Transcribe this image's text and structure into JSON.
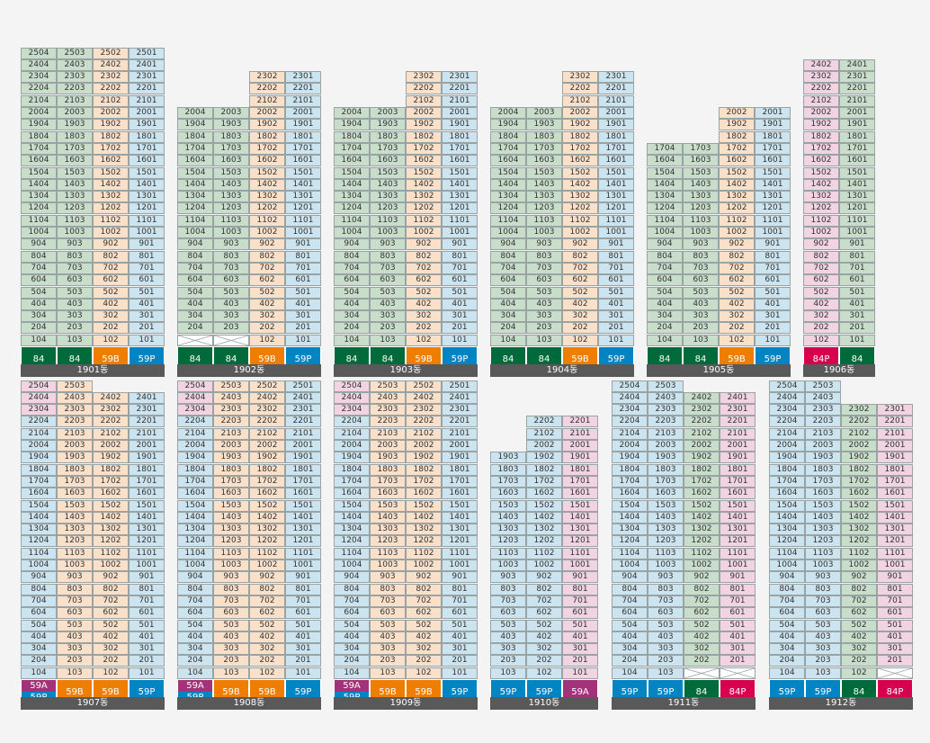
{
  "colors": {
    "green": "#c9ddcb",
    "blue": "#cce4ef",
    "peach": "#fae0c9",
    "pink": "#f1d3e2",
    "t84": "#006b3a",
    "t59B": "#ef7d00",
    "t59P": "#0085c4",
    "t84P": "#d6004f",
    "t59A": "#a2337a"
  },
  "buildings": [
    {
      "name": "1901동",
      "topFloor": 25,
      "columns": [
        {
          "unit": 4,
          "minFloor": 1,
          "color": "green",
          "type": [
            {
              "t": "84"
            }
          ]
        },
        {
          "unit": 3,
          "minFloor": 1,
          "color": "green",
          "type": [
            {
              "t": "84"
            }
          ]
        },
        {
          "unit": 2,
          "minFloor": 1,
          "color": "peach",
          "type": [
            {
              "t": "59B"
            }
          ]
        },
        {
          "unit": 1,
          "minFloor": 1,
          "color": "blue",
          "type": [
            {
              "t": "59P"
            }
          ]
        }
      ]
    },
    {
      "name": "1902동",
      "topFloor": 23,
      "columns": [
        {
          "unit": 4,
          "minFloor": 1,
          "maxFloor": 20,
          "color": "green",
          "xFloors": [
            1
          ],
          "type": [
            {
              "t": "84"
            }
          ]
        },
        {
          "unit": 3,
          "minFloor": 1,
          "maxFloor": 20,
          "color": "green",
          "xFloors": [
            1
          ],
          "type": [
            {
              "t": "84"
            }
          ]
        },
        {
          "unit": 2,
          "minFloor": 1,
          "color": "peach",
          "type": [
            {
              "t": "59B"
            }
          ]
        },
        {
          "unit": 1,
          "minFloor": 1,
          "color": "blue",
          "type": [
            {
              "t": "59P"
            }
          ]
        }
      ]
    },
    {
      "name": "1903동",
      "topFloor": 23,
      "columns": [
        {
          "unit": 4,
          "minFloor": 1,
          "maxFloor": 20,
          "color": "green",
          "type": [
            {
              "t": "84"
            }
          ]
        },
        {
          "unit": 3,
          "minFloor": 1,
          "maxFloor": 20,
          "color": "green",
          "type": [
            {
              "t": "84"
            }
          ]
        },
        {
          "unit": 2,
          "minFloor": 1,
          "color": "peach",
          "type": [
            {
              "t": "59B"
            }
          ]
        },
        {
          "unit": 1,
          "minFloor": 1,
          "color": "blue",
          "type": [
            {
              "t": "59P"
            }
          ]
        }
      ]
    },
    {
      "name": "1904동",
      "topFloor": 23,
      "columns": [
        {
          "unit": 4,
          "minFloor": 1,
          "maxFloor": 20,
          "color": "green",
          "type": [
            {
              "t": "84"
            }
          ]
        },
        {
          "unit": 3,
          "minFloor": 1,
          "maxFloor": 20,
          "color": "green",
          "type": [
            {
              "t": "84"
            }
          ]
        },
        {
          "unit": 2,
          "minFloor": 1,
          "color": "peach",
          "type": [
            {
              "t": "59B"
            }
          ]
        },
        {
          "unit": 1,
          "minFloor": 1,
          "color": "blue",
          "type": [
            {
              "t": "59P"
            }
          ]
        }
      ]
    },
    {
      "name": "1905동",
      "topFloor": 20,
      "columns": [
        {
          "unit": 4,
          "minFloor": 1,
          "maxFloor": 17,
          "color": "green",
          "type": [
            {
              "t": "84"
            }
          ]
        },
        {
          "unit": 3,
          "minFloor": 1,
          "maxFloor": 17,
          "color": "green",
          "type": [
            {
              "t": "84"
            }
          ]
        },
        {
          "unit": 2,
          "minFloor": 1,
          "color": "peach",
          "type": [
            {
              "t": "59B"
            }
          ]
        },
        {
          "unit": 1,
          "minFloor": 1,
          "color": "blue",
          "type": [
            {
              "t": "59P"
            }
          ]
        }
      ]
    },
    {
      "name": "1906동",
      "topFloor": 24,
      "columns": [
        {
          "unit": 2,
          "minFloor": 1,
          "color": "pink",
          "type": [
            {
              "t": "84P"
            }
          ]
        },
        {
          "unit": 1,
          "minFloor": 1,
          "color": "green",
          "type": [
            {
              "t": "84"
            }
          ]
        }
      ]
    },
    {
      "name": "1907동",
      "topFloor": 25,
      "columns": [
        {
          "unit": 4,
          "minFloor": 1,
          "color": "blue",
          "pinkFloors": [
            23,
            24,
            25
          ],
          "type": [
            {
              "t": "59A",
              "f": 0.5
            },
            {
              "t": "59P",
              "f": 0.5
            }
          ]
        },
        {
          "unit": 3,
          "minFloor": 1,
          "color": "peach",
          "type": [
            {
              "t": "59B"
            }
          ]
        },
        {
          "unit": 2,
          "minFloor": 1,
          "maxFloor": 24,
          "color": "peach",
          "type": [
            {
              "t": "59B"
            }
          ]
        },
        {
          "unit": 1,
          "minFloor": 1,
          "maxFloor": 24,
          "color": "blue",
          "type": [
            {
              "t": "59P"
            }
          ]
        }
      ]
    },
    {
      "name": "1908동",
      "topFloor": 25,
      "columns": [
        {
          "unit": 4,
          "minFloor": 1,
          "color": "blue",
          "pinkFloors": [
            23,
            24,
            25
          ],
          "type": [
            {
              "t": "59A",
              "f": 0.5
            },
            {
              "t": "59P",
              "f": 0.5
            }
          ]
        },
        {
          "unit": 3,
          "minFloor": 1,
          "color": "peach",
          "type": [
            {
              "t": "59B"
            }
          ]
        },
        {
          "unit": 2,
          "minFloor": 1,
          "color": "peach",
          "type": [
            {
              "t": "59B"
            }
          ]
        },
        {
          "unit": 1,
          "minFloor": 1,
          "color": "blue",
          "type": [
            {
              "t": "59P"
            }
          ]
        }
      ]
    },
    {
      "name": "1909동",
      "topFloor": 25,
      "columns": [
        {
          "unit": 4,
          "minFloor": 1,
          "color": "blue",
          "pinkFloors": [
            23,
            24,
            25
          ],
          "type": [
            {
              "t": "59A",
              "f": 0.5
            },
            {
              "t": "59P",
              "f": 0.5
            }
          ]
        },
        {
          "unit": 3,
          "minFloor": 1,
          "color": "peach",
          "type": [
            {
              "t": "59B"
            }
          ]
        },
        {
          "unit": 2,
          "minFloor": 1,
          "color": "peach",
          "type": [
            {
              "t": "59B"
            }
          ]
        },
        {
          "unit": 1,
          "minFloor": 1,
          "color": "blue",
          "type": [
            {
              "t": "59P"
            }
          ]
        }
      ]
    },
    {
      "name": "1910동",
      "topFloor": 22,
      "columns": [
        {
          "unit": 3,
          "minFloor": 1,
          "maxFloor": 19,
          "color": "blue",
          "type": [
            {
              "t": "59P"
            }
          ]
        },
        {
          "unit": 2,
          "minFloor": 1,
          "color": "blue",
          "type": [
            {
              "t": "59P"
            }
          ]
        },
        {
          "unit": 1,
          "minFloor": 1,
          "color": "pink",
          "type": [
            {
              "t": "59A"
            }
          ]
        }
      ]
    },
    {
      "name": "1911동",
      "topFloor": 25,
      "columns": [
        {
          "unit": 4,
          "minFloor": 1,
          "color": "blue",
          "type": [
            {
              "t": "59P"
            }
          ]
        },
        {
          "unit": 3,
          "minFloor": 1,
          "color": "blue",
          "type": [
            {
              "t": "59P"
            }
          ]
        },
        {
          "unit": 2,
          "minFloor": 1,
          "maxFloor": 24,
          "color": "green",
          "xFloors": [
            1
          ],
          "type": [
            {
              "t": "84"
            }
          ]
        },
        {
          "unit": 1,
          "minFloor": 1,
          "maxFloor": 24,
          "color": "pink",
          "xFloors": [
            1
          ],
          "type": [
            {
              "t": "84P"
            }
          ]
        }
      ]
    },
    {
      "name": "1912동",
      "topFloor": 25,
      "columns": [
        {
          "unit": 4,
          "minFloor": 1,
          "color": "blue",
          "type": [
            {
              "t": "59P"
            }
          ]
        },
        {
          "unit": 3,
          "minFloor": 1,
          "color": "blue",
          "type": [
            {
              "t": "59P"
            }
          ]
        },
        {
          "unit": 2,
          "minFloor": 1,
          "maxFloor": 23,
          "color": "green",
          "type": [
            {
              "t": "84"
            }
          ]
        },
        {
          "unit": 1,
          "minFloor": 1,
          "maxFloor": 23,
          "color": "pink",
          "xFloors": [
            1
          ],
          "type": [
            {
              "t": "84P"
            }
          ]
        }
      ]
    }
  ]
}
